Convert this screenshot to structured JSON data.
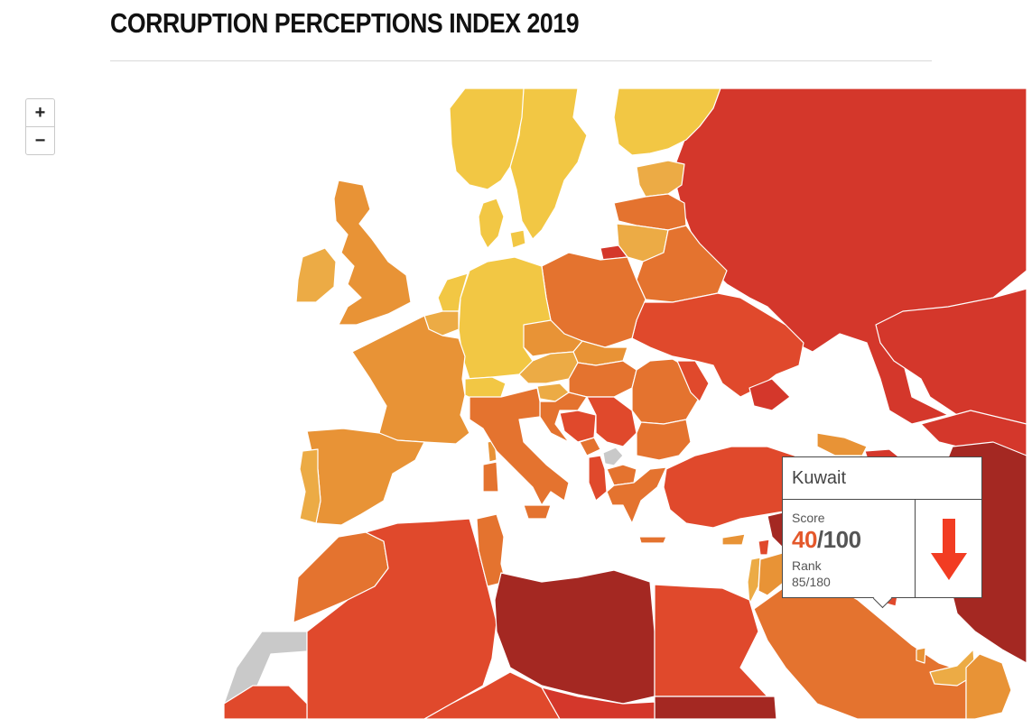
{
  "header": {
    "title": "CORRUPTION PERCEPTIONS INDEX 2019"
  },
  "zoom": {
    "in_label": "+",
    "out_label": "−"
  },
  "tooltip": {
    "country": "Kuwait",
    "score_label": "Score",
    "score": "40",
    "score_max": "/100",
    "rank_label": "Rank",
    "rank": "85/180",
    "trend_icon": "arrow-down-icon",
    "trend_color": "#f23c22"
  },
  "palette": {
    "yellow": "#f2c744",
    "light_orange": "#ecab45",
    "orange": "#e89336",
    "dark_orange": "#e4732f",
    "red_orange": "#e0492c",
    "red": "#d4372b",
    "dark_red": "#a42822",
    "no_data": "#c9c9c9",
    "border": "#ffffff"
  }
}
